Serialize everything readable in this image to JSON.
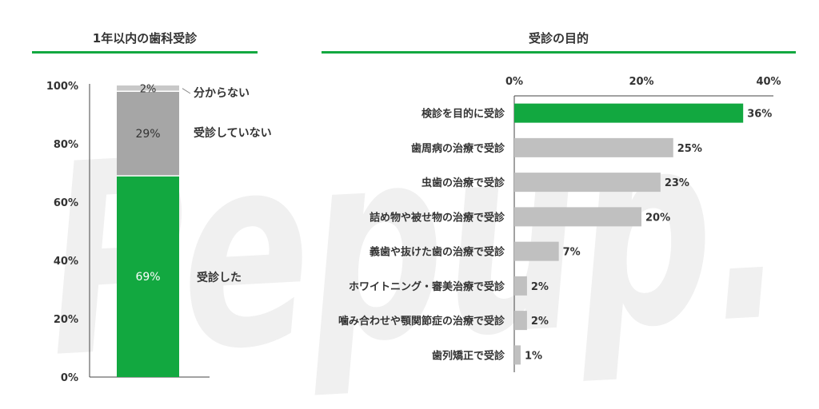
{
  "colors": {
    "accent": "#12a840",
    "gray_mid": "#a6a6a6",
    "gray_light": "#c0c0c0",
    "gray_top": "#c8c8c8",
    "text": "#333333"
  },
  "watermark": {
    "text": "Pepup."
  },
  "chart_data": [
    {
      "type": "bar",
      "stacked": true,
      "title": "1年以内の歯科受診",
      "categories": [
        ""
      ],
      "series": [
        {
          "name": "受診した",
          "values": [
            69
          ],
          "label": "69%"
        },
        {
          "name": "受診していない",
          "values": [
            29
          ],
          "label": "29%"
        },
        {
          "name": "分からない",
          "values": [
            2
          ],
          "label": "2%"
        }
      ],
      "ylim": [
        0,
        100
      ],
      "yticks": [
        {
          "value": 0,
          "label": "0%"
        },
        {
          "value": 20,
          "label": "20%"
        },
        {
          "value": 40,
          "label": "40%"
        },
        {
          "value": 60,
          "label": "60%"
        },
        {
          "value": 80,
          "label": "80%"
        },
        {
          "value": 100,
          "label": "100%"
        }
      ],
      "grid": false,
      "legend": "right"
    },
    {
      "type": "bar",
      "orientation": "horizontal",
      "title": "受診の目的",
      "categories": [
        "検診を目的に受診",
        "歯周病の治療で受診",
        "虫歯の治療で受診",
        "詰め物や被せ物の治療で受診",
        "義歯や抜けた歯の治療で受診",
        "ホワイトニング・審美治療で受診",
        "噛み合わせや顎関節症の治療で受診",
        "歯列矯正で受診"
      ],
      "values": [
        36,
        25,
        23,
        20,
        7,
        2,
        2,
        1
      ],
      "value_labels": [
        "36%",
        "25%",
        "23%",
        "20%",
        "7%",
        "2%",
        "2%",
        "1%"
      ],
      "highlight_index": 0,
      "xlim": [
        0,
        40
      ],
      "xticks": [
        {
          "value": 0,
          "label": "0%"
        },
        {
          "value": 20,
          "label": "20%"
        },
        {
          "value": 40,
          "label": "40%"
        }
      ],
      "axis_position": "top",
      "grid": false
    }
  ]
}
